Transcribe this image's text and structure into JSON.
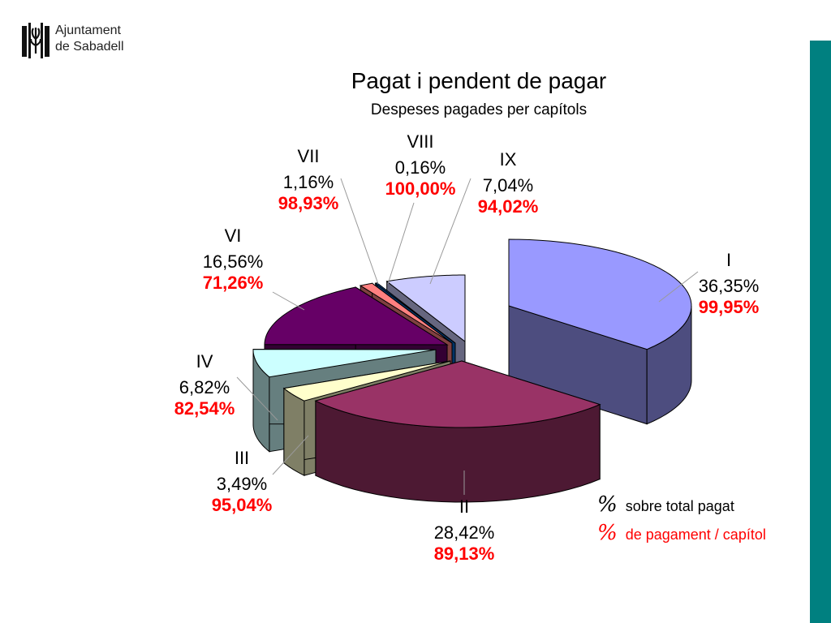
{
  "logo": {
    "line1": "Ajuntament",
    "line2": "de Sabadell"
  },
  "colors": {
    "side_bar": "#008080",
    "pct_paid_share": "#000000",
    "pct_payment_rate": "#ff0000"
  },
  "chart_data": {
    "type": "pie",
    "title": "Pagat i pendent de pagar",
    "subtitle": "Despeses pagades per capítols",
    "slices": [
      {
        "label": "I",
        "share": "36,35%",
        "share_value": 36.35,
        "rate": "99,95%",
        "rate_value": 99.95,
        "top_color": "#9999ff",
        "side_color": "#4d4d7f"
      },
      {
        "label": "II",
        "share": "28,42%",
        "share_value": 28.42,
        "rate": "89,13%",
        "rate_value": 89.13,
        "top_color": "#993366",
        "side_color": "#4d1933"
      },
      {
        "label": "III",
        "share": "3,49%",
        "share_value": 3.49,
        "rate": "95,04%",
        "rate_value": 95.04,
        "top_color": "#ffffcc",
        "side_color": "#7f7f66"
      },
      {
        "label": "IV",
        "share": "6,82%",
        "share_value": 6.82,
        "rate": "82,54%",
        "rate_value": 82.54,
        "top_color": "#ccffff",
        "side_color": "#667f7f"
      },
      {
        "label": "VI",
        "share": "16,56%",
        "share_value": 16.56,
        "rate": "71,26%",
        "rate_value": 71.26,
        "top_color": "#660066",
        "side_color": "#330033"
      },
      {
        "label": "VII",
        "share": "1,16%",
        "share_value": 1.16,
        "rate": "98,93%",
        "rate_value": 98.93,
        "top_color": "#ff8080",
        "side_color": "#7f4040"
      },
      {
        "label": "VIII",
        "share": "0,16%",
        "share_value": 0.16,
        "rate": "100,00%",
        "rate_value": 100.0,
        "top_color": "#0066cc",
        "side_color": "#003366"
      },
      {
        "label": "IX",
        "share": "7,04%",
        "share_value": 7.04,
        "rate": "94,02%",
        "rate_value": 94.02,
        "top_color": "#ccccff",
        "side_color": "#66667f"
      }
    ]
  },
  "legend": [
    {
      "symbol": "%",
      "text": "sobre total pagat"
    },
    {
      "symbol": "%",
      "text": "de pagament / capítol"
    }
  ]
}
